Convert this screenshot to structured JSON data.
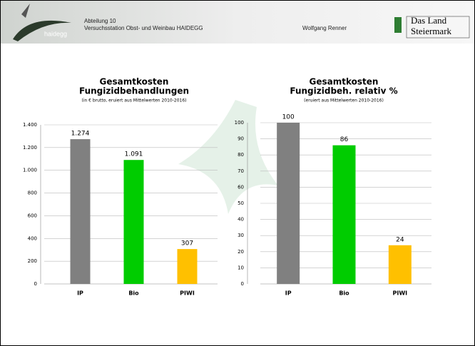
{
  "header": {
    "logo": "haidegg",
    "department": "Abteilung 10",
    "station": "Versuchsstation Obst- und Weinbau HAIDEGG",
    "author": "Wolfgang Renner",
    "brand": [
      "Das Land",
      "Steiermark"
    ]
  },
  "chart_data": [
    {
      "type": "bar",
      "title": [
        "Gesamtkosten",
        "Fungizidbehandlungen"
      ],
      "subtitle": "(in € brutto, eruiert aus Mittelwerten 2010-2016)",
      "categories": [
        "IP",
        "Bio",
        "PIWI"
      ],
      "values": [
        1274,
        1091,
        307
      ],
      "value_labels": [
        "1.274",
        "1.091",
        "307"
      ],
      "colors": [
        "#808080",
        "#00cc00",
        "#ffc000"
      ],
      "ylim": [
        0,
        1400
      ],
      "yticks": [
        0,
        200,
        400,
        600,
        800,
        {
          "value": 1000,
          "label": "1.000"
        },
        {
          "value": 1200,
          "label": "1.200"
        },
        {
          "value": 1400,
          "label": "1.400"
        }
      ],
      "grid": true
    },
    {
      "type": "bar",
      "title": [
        "Gesamtkosten",
        "Fungizidbeh. relativ %"
      ],
      "subtitle": "(eruiert aus Mittelwerten 2010-2016)",
      "categories": [
        "IP",
        "Bio",
        "PIWI"
      ],
      "values": [
        100,
        86,
        24
      ],
      "colors": [
        "#808080",
        "#00cc00",
        "#ffc000"
      ],
      "ylim": [
        0,
        100
      ],
      "yticks": [
        0,
        10,
        20,
        30,
        40,
        50,
        60,
        70,
        80,
        90,
        100
      ],
      "grid": true
    }
  ]
}
